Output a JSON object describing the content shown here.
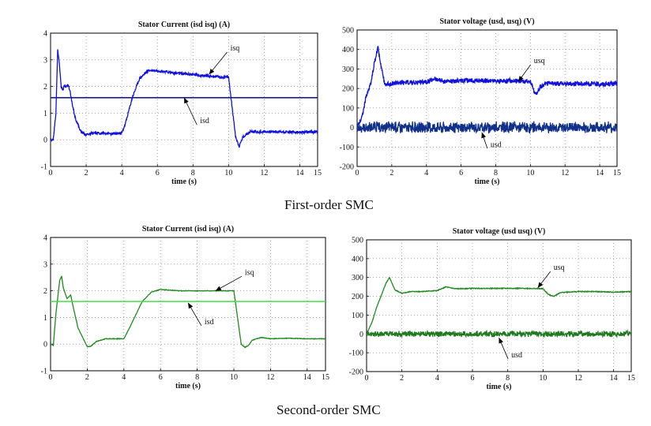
{
  "captions": {
    "first": "First-order SMC",
    "second": "Second-order SMC"
  },
  "chart_data": [
    {
      "type": "line",
      "title": "Stator Current (isd isq) (A)",
      "xlabel": "time (s)",
      "ylabel": "",
      "xlim": [
        0,
        15
      ],
      "ylim": [
        -1,
        4
      ],
      "xticks": [
        0,
        2,
        4,
        6,
        8,
        10,
        12,
        14,
        15
      ],
      "yticks": [
        -1,
        0,
        1,
        2,
        3,
        4
      ],
      "grid": true,
      "annotations": [
        {
          "text": "isq",
          "arrow_to": [
            8.9,
            2.45
          ],
          "text_at": [
            10.1,
            3.35
          ]
        },
        {
          "text": "isd",
          "arrow_to": [
            7.5,
            1.58
          ],
          "text_at": [
            8.4,
            0.62
          ]
        }
      ],
      "series": [
        {
          "name": "isq",
          "color": "#1010e0",
          "noise": 0.05,
          "x": [
            0,
            0.15,
            0.3,
            0.4,
            0.5,
            0.6,
            0.7,
            0.8,
            0.9,
            1.0,
            1.1,
            1.2,
            1.4,
            1.7,
            2.0,
            2.5,
            3.0,
            3.5,
            4.0,
            4.2,
            4.6,
            5.0,
            5.5,
            6.0,
            7.0,
            8.0,
            9.0,
            9.5,
            10.0,
            10.2,
            10.4,
            10.6,
            10.8,
            11.2,
            12,
            13,
            14,
            15
          ],
          "y": [
            0,
            0,
            1.0,
            3.4,
            2.8,
            2.0,
            1.9,
            2.05,
            2.0,
            2.05,
            1.8,
            1.4,
            0.8,
            0.3,
            0.2,
            0.25,
            0.25,
            0.22,
            0.25,
            0.6,
            1.6,
            2.3,
            2.6,
            2.6,
            2.5,
            2.45,
            2.38,
            2.35,
            2.35,
            1.2,
            0.1,
            -0.25,
            0.1,
            0.3,
            0.3,
            0.3,
            0.28,
            0.3
          ]
        },
        {
          "name": "isd",
          "color": "#1a1a9a",
          "noise": 0,
          "x": [
            0,
            15
          ],
          "y": [
            1.58,
            1.58
          ]
        }
      ]
    },
    {
      "type": "line",
      "title": "Stator voltage (usd, usq) (V)",
      "xlabel": "time (s)",
      "ylabel": "",
      "xlim": [
        0,
        15
      ],
      "ylim": [
        -200,
        500
      ],
      "xticks": [
        0,
        2,
        4,
        6,
        8,
        10,
        12,
        14,
        15
      ],
      "yticks": [
        -200,
        -100,
        0,
        100,
        200,
        300,
        400,
        500
      ],
      "grid": true,
      "annotations": [
        {
          "text": "usq",
          "arrow_to": [
            9.3,
            235
          ],
          "text_at": [
            10.2,
            330
          ]
        },
        {
          "text": "usd",
          "arrow_to": [
            7.2,
            -25
          ],
          "text_at": [
            7.7,
            -100
          ]
        }
      ],
      "series": [
        {
          "name": "usq",
          "color": "#1010e0",
          "noise": 12,
          "x": [
            0,
            0.3,
            0.5,
            0.8,
            1.0,
            1.2,
            1.4,
            1.6,
            2.0,
            2.5,
            3.0,
            4.0,
            4.5,
            5.0,
            6.0,
            7.0,
            8.0,
            9.0,
            10.0,
            10.3,
            10.6,
            11.0,
            12,
            13,
            14,
            15
          ],
          "y": [
            0,
            60,
            150,
            230,
            330,
            410,
            310,
            220,
            225,
            230,
            230,
            235,
            250,
            235,
            240,
            240,
            238,
            240,
            235,
            170,
            210,
            225,
            225,
            225,
            222,
            225
          ]
        },
        {
          "name": "usd",
          "color": "#10308a",
          "noise": 25,
          "x": [
            0,
            15
          ],
          "y": [
            0,
            0
          ]
        }
      ]
    },
    {
      "type": "line",
      "title": "Stator Current (isd isq) (A)",
      "xlabel": "time (s)",
      "ylabel": "",
      "xlim": [
        0,
        15
      ],
      "ylim": [
        -1,
        4
      ],
      "xticks": [
        0,
        2,
        4,
        6,
        8,
        10,
        12,
        14,
        15
      ],
      "yticks": [
        -1,
        0,
        1,
        2,
        3,
        4
      ],
      "grid": true,
      "annotations": [
        {
          "text": "isq",
          "arrow_to": [
            9.0,
            2.0
          ],
          "text_at": [
            10.6,
            2.6
          ]
        },
        {
          "text": "isd",
          "arrow_to": [
            7.5,
            1.55
          ],
          "text_at": [
            8.4,
            0.75
          ]
        }
      ],
      "series": [
        {
          "name": "isq",
          "color": "#1f8a1f",
          "noise": 0.01,
          "x": [
            0,
            0.15,
            0.3,
            0.5,
            0.6,
            0.7,
            0.9,
            1.1,
            1.2,
            1.5,
            2.0,
            2.2,
            2.5,
            3.0,
            3.5,
            4.0,
            4.3,
            5.0,
            5.5,
            6.0,
            7.0,
            8.0,
            9.0,
            10.0,
            10.2,
            10.4,
            10.6,
            10.8,
            11.0,
            11.5,
            12,
            13,
            14,
            15
          ],
          "y": [
            0,
            -0.05,
            1.2,
            2.4,
            2.55,
            2.1,
            1.7,
            1.85,
            1.5,
            0.6,
            -0.1,
            -0.08,
            0.1,
            0.2,
            0.2,
            0.2,
            0.6,
            1.6,
            1.95,
            2.05,
            2.0,
            2.0,
            2.0,
            2.0,
            1.0,
            0.0,
            -0.12,
            -0.05,
            0.15,
            0.25,
            0.2,
            0.22,
            0.2,
            0.2
          ]
        },
        {
          "name": "isd",
          "color": "#40e040",
          "noise": 0,
          "x": [
            0,
            15
          ],
          "y": [
            1.6,
            1.6
          ]
        }
      ]
    },
    {
      "type": "line",
      "title": "Stator voltage (usd usq) (V)",
      "xlabel": "time (s)",
      "ylabel": "",
      "xlim": [
        0,
        15
      ],
      "ylim": [
        -200,
        500
      ],
      "xticks": [
        0,
        2,
        4,
        6,
        8,
        10,
        12,
        14,
        15
      ],
      "yticks": [
        -200,
        -100,
        0,
        100,
        200,
        300,
        400,
        500
      ],
      "grid": true,
      "annotations": [
        {
          "text": "usq",
          "arrow_to": [
            9.7,
            245
          ],
          "text_at": [
            10.6,
            340
          ]
        },
        {
          "text": "usd",
          "arrow_to": [
            7.5,
            -20
          ],
          "text_at": [
            8.2,
            -125
          ]
        }
      ],
      "series": [
        {
          "name": "usq",
          "color": "#1f8a1f",
          "noise": 2,
          "x": [
            0,
            0.3,
            0.6,
            0.9,
            1.1,
            1.3,
            1.6,
            2.0,
            2.5,
            3.0,
            4.0,
            4.5,
            5.0,
            6.0,
            7.0,
            8.0,
            9.0,
            10.0,
            10.3,
            10.6,
            11.0,
            12,
            13,
            14,
            15
          ],
          "y": [
            0,
            60,
            150,
            220,
            270,
            300,
            235,
            215,
            225,
            225,
            230,
            250,
            240,
            242,
            242,
            242,
            242,
            240,
            210,
            200,
            220,
            225,
            225,
            222,
            225
          ]
        },
        {
          "name": "usd",
          "color": "#1f7a1f",
          "noise": 14,
          "x": [
            0,
            15
          ],
          "y": [
            0,
            0
          ]
        }
      ]
    }
  ]
}
